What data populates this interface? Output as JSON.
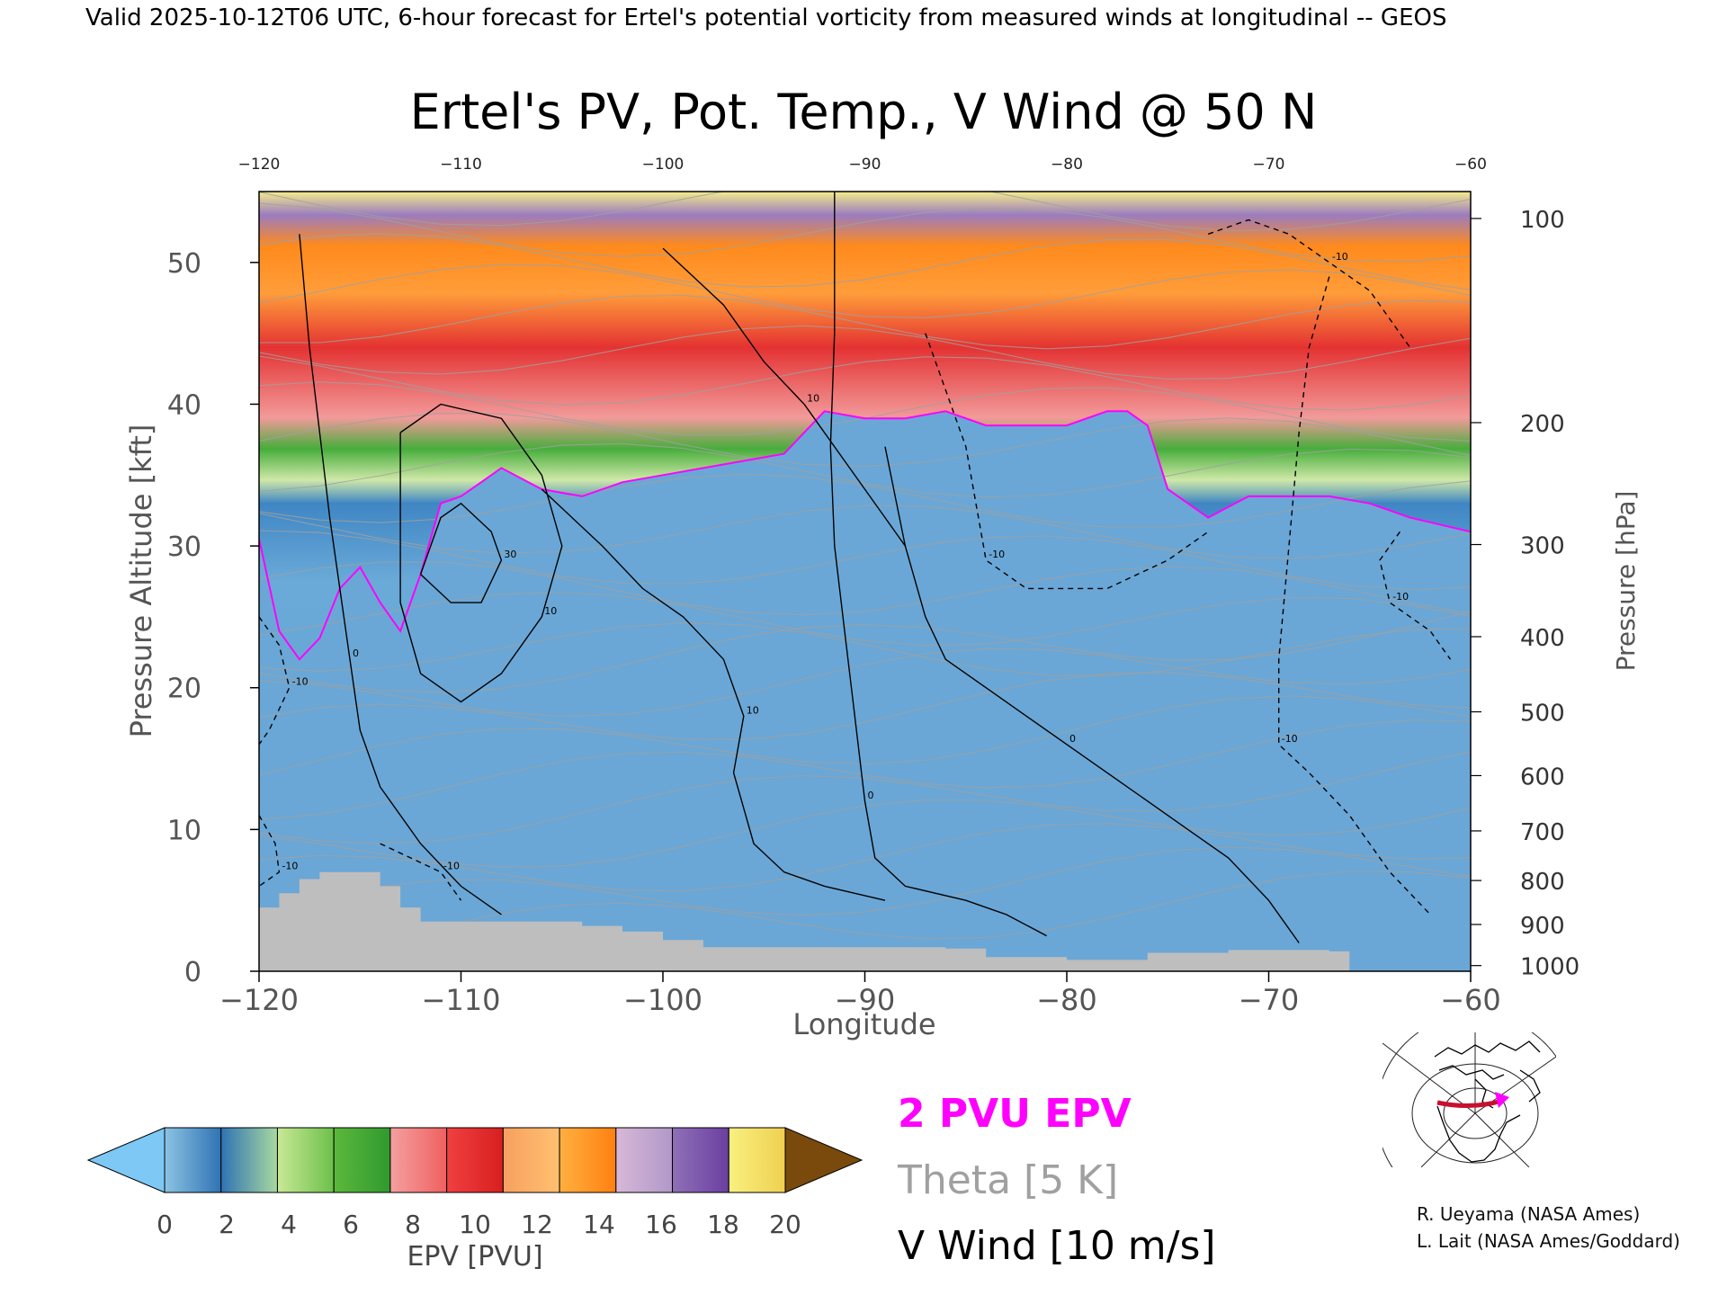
{
  "header": {
    "valid_line": "Valid 2025-10-12T06 UTC, 6-hour forecast for Ertel's potential vorticity from measured winds at longitudinal -- GEOS"
  },
  "chart_data": {
    "type": "heatmap",
    "title": "Ertel's PV, Pot. Temp., V Wind @ 50 N",
    "xlabel": "Longitude",
    "ylabel": "Pressure Altitude [kft]",
    "y2label": "Pressure [hPa]",
    "xlim": [
      -120,
      -60
    ],
    "ylim": [
      0,
      55
    ],
    "x_ticks": [
      -120,
      -110,
      -100,
      -90,
      -80,
      -70,
      -60
    ],
    "top_x_ticks": [
      -120,
      -110,
      -100,
      -90,
      -80,
      -70,
      -60
    ],
    "y_ticks": [
      0,
      10,
      20,
      30,
      40,
      50
    ],
    "pressure_ticks": [
      {
        "label": "100",
        "kft": 53.1
      },
      {
        "label": "200",
        "kft": 38.7
      },
      {
        "label": "300",
        "kft": 30.1
      },
      {
        "label": "400",
        "kft": 23.6
      },
      {
        "label": "500",
        "kft": 18.3
      },
      {
        "label": "600",
        "kft": 13.8
      },
      {
        "label": "700",
        "kft": 9.9
      },
      {
        "label": "800",
        "kft": 6.4
      },
      {
        "label": "900",
        "kft": 3.3
      },
      {
        "label": "1000",
        "kft": 0.4
      }
    ],
    "tropopause_2pvu_kft": [
      [
        -120,
        30.5
      ],
      [
        -119,
        24.0
      ],
      [
        -118,
        22.0
      ],
      [
        -117,
        23.5
      ],
      [
        -116,
        27.0
      ],
      [
        -115,
        28.5
      ],
      [
        -114,
        26.0
      ],
      [
        -113,
        24.0
      ],
      [
        -112,
        28.0
      ],
      [
        -111,
        33.0
      ],
      [
        -110,
        33.5
      ],
      [
        -109,
        34.5
      ],
      [
        -108,
        35.5
      ],
      [
        -106,
        34.0
      ],
      [
        -104,
        33.5
      ],
      [
        -102,
        34.5
      ],
      [
        -100,
        35.0
      ],
      [
        -98,
        35.5
      ],
      [
        -96,
        36.0
      ],
      [
        -94,
        36.5
      ],
      [
        -92,
        39.5
      ],
      [
        -90,
        39.0
      ],
      [
        -88,
        39.0
      ],
      [
        -86,
        39.5
      ],
      [
        -84,
        38.5
      ],
      [
        -82,
        38.5
      ],
      [
        -80,
        38.5
      ],
      [
        -78,
        39.5
      ],
      [
        -77,
        39.5
      ],
      [
        -76,
        38.5
      ],
      [
        -75,
        34.0
      ],
      [
        -73,
        32.0
      ],
      [
        -71,
        33.5
      ],
      [
        -69,
        33.5
      ],
      [
        -67,
        33.5
      ],
      [
        -65,
        33.0
      ],
      [
        -63,
        32.0
      ],
      [
        -60,
        31.0
      ]
    ],
    "surface_kft": [
      [
        -120,
        4.5
      ],
      [
        -119,
        5.5
      ],
      [
        -118,
        6.5
      ],
      [
        -117,
        7.0
      ],
      [
        -115,
        7.0
      ],
      [
        -114,
        6.0
      ],
      [
        -113,
        4.5
      ],
      [
        -112,
        3.5
      ],
      [
        -110,
        3.5
      ],
      [
        -107,
        3.5
      ],
      [
        -104,
        3.2
      ],
      [
        -102,
        2.8
      ],
      [
        -100,
        2.2
      ],
      [
        -98,
        1.7
      ],
      [
        -95,
        1.7
      ],
      [
        -90,
        1.7
      ],
      [
        -86,
        1.6
      ],
      [
        -84,
        1.0
      ],
      [
        -80,
        0.8
      ],
      [
        -76,
        1.3
      ],
      [
        -72,
        1.5
      ],
      [
        -67,
        1.4
      ],
      [
        -66,
        0.0
      ]
    ],
    "v_wind_contours": [
      {
        "label": "0",
        "kft": [
          [
            -118,
            52
          ],
          [
            -117.5,
            44
          ],
          [
            -117,
            38
          ],
          [
            -116.5,
            32
          ],
          [
            -116,
            27
          ],
          [
            -115.5,
            22
          ],
          [
            -115,
            17
          ],
          [
            -114,
            13
          ],
          [
            -112,
            9
          ],
          [
            -110,
            6
          ],
          [
            -108,
            4
          ]
        ]
      },
      {
        "label": "0",
        "kft": [
          [
            -91.5,
            55
          ],
          [
            -91.5,
            45
          ],
          [
            -91.7,
            37
          ],
          [
            -91.5,
            30
          ],
          [
            -91,
            24
          ],
          [
            -90.5,
            18
          ],
          [
            -90,
            12
          ],
          [
            -89.5,
            8
          ],
          [
            -88,
            6
          ],
          [
            -85,
            5
          ],
          [
            -83,
            4
          ],
          [
            -81,
            2.5
          ]
        ]
      },
      {
        "label": "0",
        "kft": [
          [
            -89,
            37
          ],
          [
            -88,
            30
          ],
          [
            -87,
            25
          ],
          [
            -86,
            22
          ],
          [
            -84,
            20
          ],
          [
            -82,
            18
          ],
          [
            -80,
            16
          ],
          [
            -78,
            14
          ],
          [
            -76,
            12
          ],
          [
            -74,
            10
          ],
          [
            -72,
            8
          ],
          [
            -70,
            5
          ],
          [
            -68.5,
            2
          ]
        ]
      },
      {
        "label": "10",
        "kft": [
          [
            -100,
            51
          ],
          [
            -97,
            47
          ],
          [
            -95,
            43
          ],
          [
            -93,
            40
          ],
          [
            -91,
            36
          ],
          [
            -89,
            32
          ],
          [
            -88,
            30
          ]
        ]
      },
      {
        "label": "30",
        "kft": [
          [
            -112,
            28
          ],
          [
            -111,
            32
          ],
          [
            -110,
            33
          ],
          [
            -108.5,
            31
          ],
          [
            -108,
            29
          ],
          [
            -109,
            26
          ],
          [
            -110.5,
            26
          ],
          [
            -112,
            28
          ]
        ]
      },
      {
        "label": "10",
        "kft": [
          [
            -113,
            38
          ],
          [
            -111,
            40
          ],
          [
            -108,
            39
          ],
          [
            -106,
            35
          ],
          [
            -105,
            30
          ],
          [
            -106,
            25
          ],
          [
            -108,
            21
          ],
          [
            -110,
            19
          ],
          [
            -112,
            21
          ],
          [
            -113,
            26
          ],
          [
            -113,
            38
          ]
        ]
      },
      {
        "label": "10",
        "kft": [
          [
            -106,
            34
          ],
          [
            -103,
            30
          ],
          [
            -101,
            27
          ],
          [
            -99,
            25
          ],
          [
            -97,
            22
          ],
          [
            -96,
            18
          ],
          [
            -96.5,
            14
          ],
          [
            -95.5,
            9
          ],
          [
            -94,
            7
          ],
          [
            -92,
            6
          ],
          [
            -89,
            5
          ]
        ]
      },
      {
        "label": "-10",
        "dashed": true,
        "kft": [
          [
            -87,
            45
          ],
          [
            -86,
            41
          ],
          [
            -85,
            37
          ],
          [
            -84.5,
            33
          ],
          [
            -84,
            29
          ],
          [
            -82,
            27
          ],
          [
            -78,
            27
          ],
          [
            -75,
            29
          ],
          [
            -73,
            31
          ]
        ]
      },
      {
        "label": "-10",
        "dashed": true,
        "kft": [
          [
            -73,
            52
          ],
          [
            -71,
            53
          ],
          [
            -69,
            52
          ],
          [
            -67,
            50
          ],
          [
            -65,
            48
          ],
          [
            -64,
            46
          ],
          [
            -63,
            44
          ]
        ]
      },
      {
        "label": "-10",
        "dashed": true,
        "kft": [
          [
            -67,
            49
          ],
          [
            -68,
            44
          ],
          [
            -68.5,
            38
          ],
          [
            -69,
            30
          ],
          [
            -69.5,
            22
          ],
          [
            -69.5,
            16
          ],
          [
            -68,
            14
          ],
          [
            -66,
            11
          ],
          [
            -64,
            7
          ],
          [
            -62,
            4
          ]
        ]
      },
      {
        "label": "-10",
        "dashed": true,
        "kft": [
          [
            -63.5,
            31
          ],
          [
            -64.5,
            29
          ],
          [
            -64,
            26
          ],
          [
            -62,
            24
          ],
          [
            -61,
            22
          ]
        ]
      },
      {
        "label": "-10",
        "dashed": true,
        "kft": [
          [
            -120,
            25
          ],
          [
            -119,
            23
          ],
          [
            -118.5,
            20
          ],
          [
            -119.5,
            17
          ],
          [
            -120,
            16
          ]
        ]
      },
      {
        "label": "-10",
        "dashed": true,
        "kft": [
          [
            -120,
            11
          ],
          [
            -119.2,
            9
          ],
          [
            -119,
            7
          ],
          [
            -120,
            6
          ]
        ]
      },
      {
        "label": "-10",
        "dashed": true,
        "kft": [
          [
            -114,
            9
          ],
          [
            -112.5,
            8
          ],
          [
            -111,
            7
          ],
          [
            -110,
            5
          ]
        ]
      }
    ],
    "theta_K_isentropes_approx_levels": [
      "5 K interval"
    ]
  },
  "colorbar": {
    "label": "EPV [PVU]",
    "ticks": [
      "0",
      "2",
      "4",
      "6",
      "8",
      "10",
      "12",
      "14",
      "16",
      "18",
      "20"
    ],
    "under_color": "#7ec8f6",
    "over_color": "#7a4a0c",
    "bins": [
      [
        "#8cc3e3",
        "#2f73b3"
      ],
      [
        "#2f73b3",
        "#a8d8a0"
      ],
      [
        "#c8e896",
        "#6cc04a"
      ],
      [
        "#5cb83c",
        "#2f9a2f"
      ],
      [
        "#f4a0a0",
        "#f06060"
      ],
      [
        "#f04040",
        "#d81f1f"
      ],
      [
        "#f8a060",
        "#ffc070"
      ],
      [
        "#ffb040",
        "#ff8010"
      ],
      [
        "#d8b8d8",
        "#b098c8"
      ],
      [
        "#9070b8",
        "#6a3fa0"
      ],
      [
        "#f8f080",
        "#f0d050"
      ]
    ]
  },
  "legend": {
    "pv_label": "2 PVU EPV",
    "theta_label": "Theta [5 K]",
    "wind_label": "V Wind [10 m/s]",
    "pv_color": "#ff00ff",
    "theta_color": "#a0a0a0",
    "wind_color": "#000000"
  },
  "credits": {
    "line1": "R. Ueyama (NASA Ames)",
    "line2": "L. Lait (NASA Ames/Goddard)"
  },
  "inset_map": {
    "section_color": "#c8102e",
    "marker_color": "#ff00ff"
  }
}
